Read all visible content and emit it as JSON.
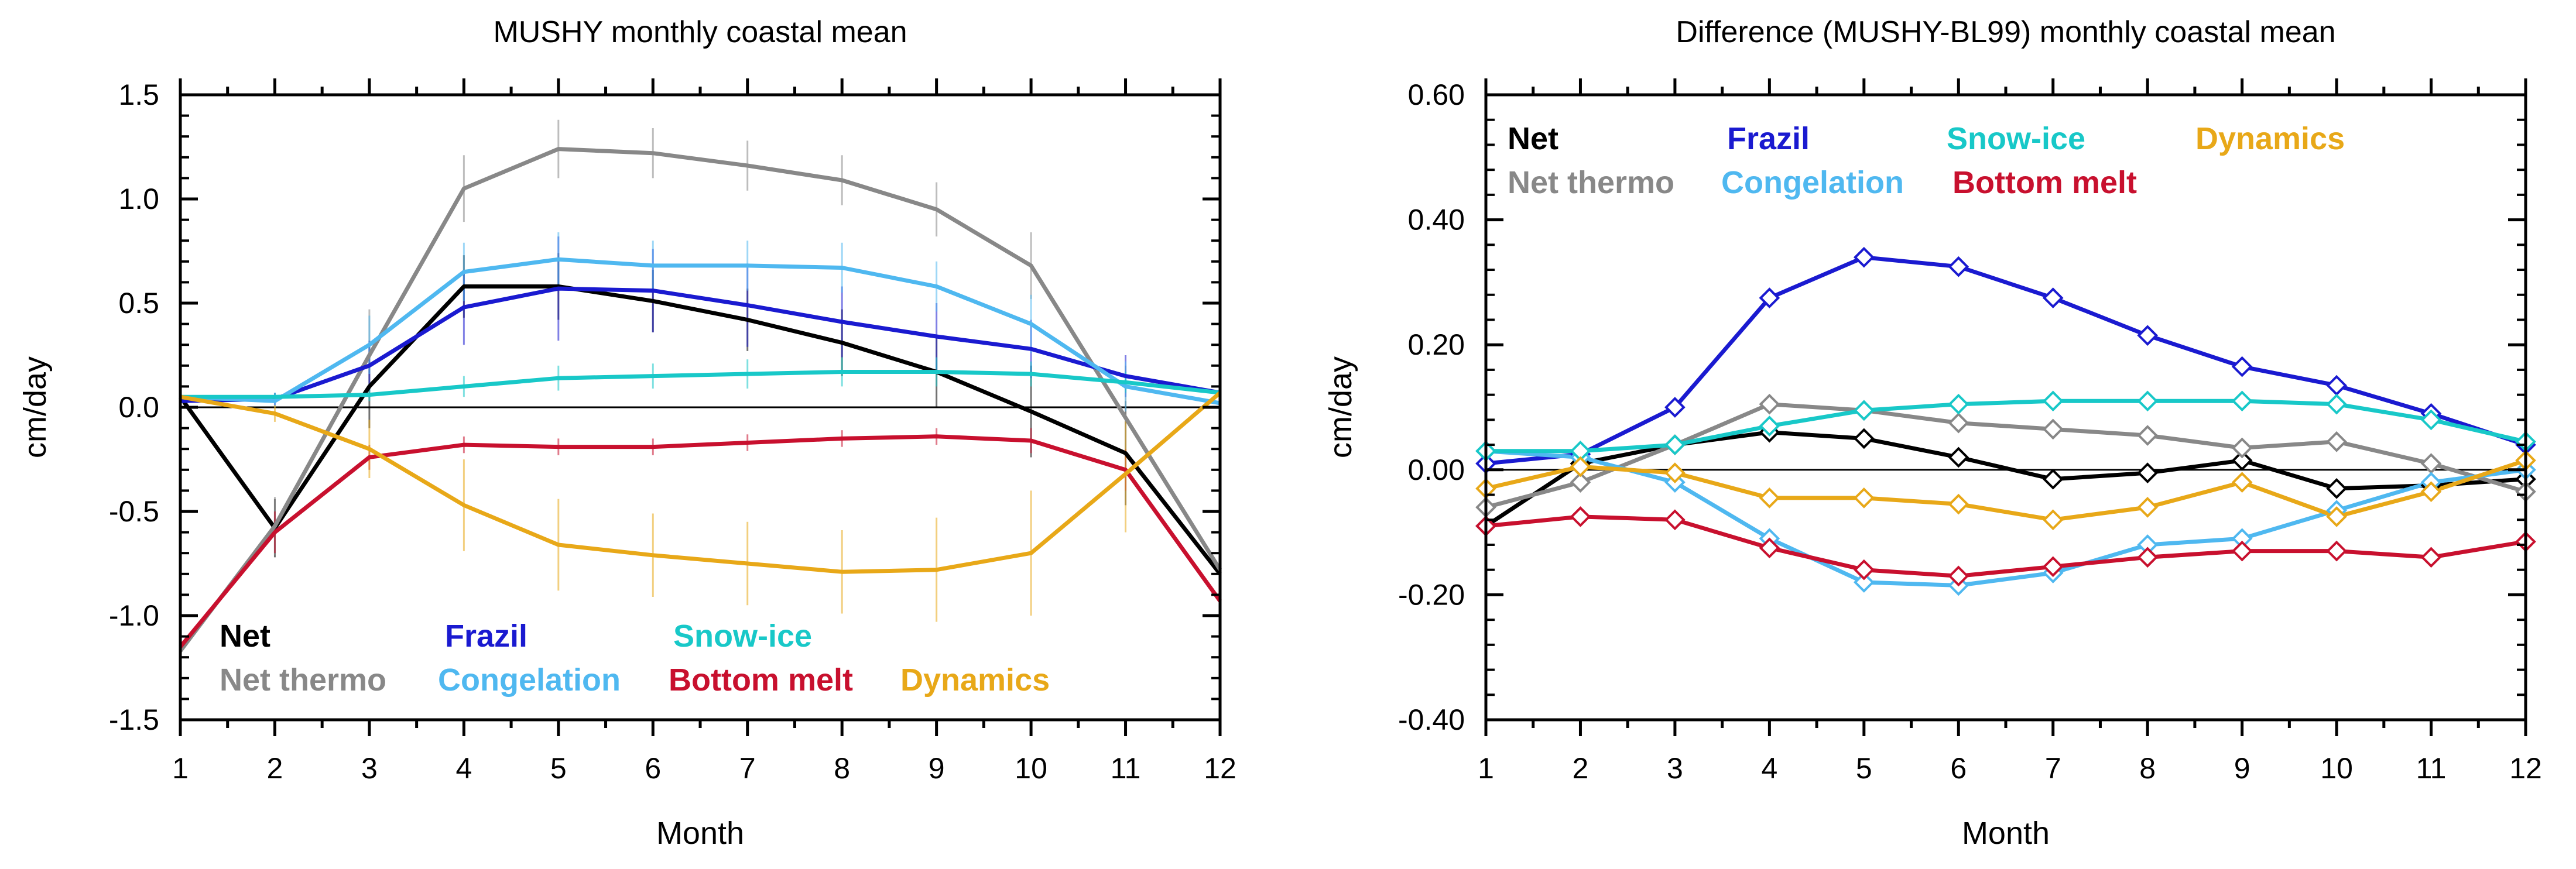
{
  "chart_data": [
    {
      "type": "line",
      "title": "MUSHY monthly coastal mean",
      "xlabel": "Month",
      "ylabel": "cm/day",
      "x": [
        1,
        2,
        3,
        4,
        5,
        6,
        7,
        8,
        9,
        10,
        11,
        12
      ],
      "xlim": [
        1,
        12
      ],
      "ylim": [
        -1.5,
        1.5
      ],
      "yticks": [
        "1.5",
        "1.0",
        "0.5",
        "0.0",
        "-0.5",
        "-1.0",
        "-1.5"
      ],
      "ytick_values": [
        1.5,
        1.0,
        0.5,
        0.0,
        -0.5,
        -1.0,
        -1.5
      ],
      "zero_line": true,
      "error_bars": true,
      "legend_position": "bottom-left",
      "series": [
        {
          "name": "Net",
          "color": "#000000",
          "values": [
            0.05,
            -0.58,
            0.1,
            0.58,
            0.58,
            0.51,
            0.42,
            0.31,
            0.17,
            -0.02,
            -0.22,
            -0.8
          ],
          "err": [
            0.04,
            0.14,
            0.2,
            0.15,
            0.16,
            0.15,
            0.15,
            0.16,
            0.17,
            0.22,
            0.25,
            0.1
          ]
        },
        {
          "name": "Net thermo",
          "color": "#888888",
          "values": [
            -1.17,
            -0.57,
            0.25,
            1.05,
            1.24,
            1.22,
            1.16,
            1.09,
            0.95,
            0.68,
            -0.05,
            -0.78
          ],
          "err": [
            0.04,
            0.14,
            0.22,
            0.16,
            0.14,
            0.12,
            0.12,
            0.12,
            0.13,
            0.16,
            0.25,
            0.1
          ]
        },
        {
          "name": "Frazil",
          "color": "#1a1ad0",
          "values": [
            0.03,
            0.04,
            0.2,
            0.48,
            0.57,
            0.56,
            0.49,
            0.41,
            0.34,
            0.28,
            0.15,
            0.07
          ],
          "err": [
            0.02,
            0.03,
            0.12,
            0.18,
            0.25,
            0.2,
            0.2,
            0.17,
            0.16,
            0.14,
            0.1,
            0.03
          ]
        },
        {
          "name": "Congelation",
          "color": "#4fb8f0",
          "values": [
            0.05,
            0.03,
            0.3,
            0.65,
            0.71,
            0.68,
            0.68,
            0.67,
            0.58,
            0.4,
            0.1,
            0.02
          ],
          "err": [
            0.02,
            0.03,
            0.14,
            0.14,
            0.13,
            0.12,
            0.12,
            0.12,
            0.12,
            0.14,
            0.12,
            0.02
          ]
        },
        {
          "name": "Snow-ice",
          "color": "#18c8c8",
          "values": [
            0.05,
            0.05,
            0.06,
            0.1,
            0.14,
            0.15,
            0.16,
            0.17,
            0.17,
            0.16,
            0.12,
            0.07
          ],
          "err": [
            0.02,
            0.02,
            0.03,
            0.05,
            0.06,
            0.06,
            0.07,
            0.07,
            0.07,
            0.06,
            0.05,
            0.03
          ]
        },
        {
          "name": "Bottom melt",
          "color": "#c8102e",
          "values": [
            -1.15,
            -0.6,
            -0.24,
            -0.18,
            -0.19,
            -0.19,
            -0.17,
            -0.15,
            -0.14,
            -0.16,
            -0.3,
            -0.93
          ],
          "err": [
            0.03,
            0.1,
            0.06,
            0.04,
            0.04,
            0.04,
            0.04,
            0.04,
            0.04,
            0.06,
            0.1,
            0.08
          ]
        },
        {
          "name": "Dynamics",
          "color": "#e8a818",
          "values": [
            0.05,
            -0.03,
            -0.2,
            -0.47,
            -0.66,
            -0.71,
            -0.75,
            -0.79,
            -0.78,
            -0.7,
            -0.32,
            0.07
          ],
          "err": [
            0.03,
            0.04,
            0.14,
            0.22,
            0.22,
            0.2,
            0.2,
            0.2,
            0.25,
            0.3,
            0.28,
            0.05
          ]
        }
      ]
    },
    {
      "type": "line",
      "title": "Difference (MUSHY-BL99) monthly coastal mean",
      "xlabel": "Month",
      "ylabel": "cm/day",
      "x": [
        1,
        2,
        3,
        4,
        5,
        6,
        7,
        8,
        9,
        10,
        11,
        12
      ],
      "xlim": [
        1,
        12
      ],
      "ylim": [
        -0.4,
        0.6
      ],
      "yticks": [
        "0.60",
        "0.40",
        "0.20",
        "0.00",
        "-0.20",
        "-0.40"
      ],
      "ytick_values": [
        0.6,
        0.4,
        0.2,
        0.0,
        -0.2,
        -0.4
      ],
      "zero_line": true,
      "markers": "diamond",
      "legend_position": "top-left",
      "series": [
        {
          "name": "Net",
          "color": "#000000",
          "values": [
            -0.09,
            0.01,
            0.04,
            0.06,
            0.05,
            0.02,
            -0.015,
            -0.005,
            0.015,
            -0.03,
            -0.025,
            -0.015
          ]
        },
        {
          "name": "Net thermo",
          "color": "#888888",
          "values": [
            -0.06,
            -0.02,
            0.04,
            0.105,
            0.095,
            0.075,
            0.065,
            0.055,
            0.035,
            0.045,
            0.01,
            -0.035
          ]
        },
        {
          "name": "Frazil",
          "color": "#1a1ad0",
          "values": [
            0.01,
            0.025,
            0.1,
            0.275,
            0.34,
            0.325,
            0.275,
            0.215,
            0.165,
            0.135,
            0.09,
            0.04
          ]
        },
        {
          "name": "Congelation",
          "color": "#4fb8f0",
          "values": [
            0.03,
            0.02,
            -0.02,
            -0.11,
            -0.18,
            -0.185,
            -0.165,
            -0.12,
            -0.11,
            -0.065,
            -0.02,
            0.0
          ]
        },
        {
          "name": "Snow-ice",
          "color": "#18c8c8",
          "values": [
            0.03,
            0.03,
            0.04,
            0.07,
            0.095,
            0.105,
            0.11,
            0.11,
            0.11,
            0.105,
            0.08,
            0.045
          ]
        },
        {
          "name": "Bottom melt",
          "color": "#c8102e",
          "values": [
            -0.09,
            -0.075,
            -0.08,
            -0.125,
            -0.16,
            -0.17,
            -0.155,
            -0.14,
            -0.13,
            -0.13,
            -0.14,
            -0.115
          ]
        },
        {
          "name": "Dynamics",
          "color": "#e8a818",
          "values": [
            -0.03,
            0.005,
            -0.005,
            -0.045,
            -0.045,
            -0.055,
            -0.08,
            -0.06,
            -0.02,
            -0.075,
            -0.035,
            0.015
          ]
        }
      ]
    }
  ]
}
